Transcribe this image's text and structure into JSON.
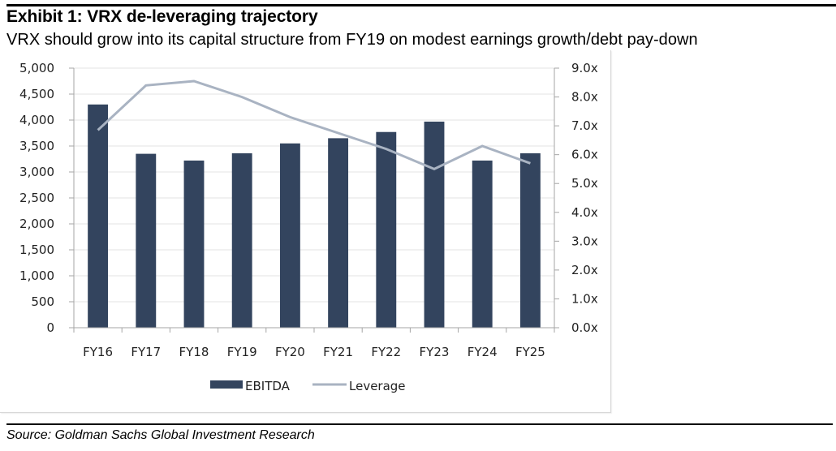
{
  "exhibit": {
    "title": "Exhibit 1: VRX de-leveraging trajectory",
    "subtitle": "VRX should grow into its capital structure from FY19 on modest earnings growth/debt pay-down",
    "source": "Source: Goldman Sachs Global Investment Research"
  },
  "chart_data": {
    "type": "bar",
    "title": "Exhibit 1: VRX de-leveraging trajectory",
    "subtitle": "VRX should grow into its capital structure from FY19 on modest earnings growth/debt pay-down",
    "xlabel": "",
    "ylabel": "",
    "y2label": "",
    "categories": [
      "FY16",
      "FY17",
      "FY18",
      "FY19",
      "FY20",
      "FY21",
      "FY22",
      "FY23",
      "FY24",
      "FY25"
    ],
    "series": [
      {
        "name": "EBITDA",
        "type": "bar",
        "axis": "left",
        "color": "#33445e",
        "values": [
          4300,
          3350,
          3220,
          3360,
          3550,
          3650,
          3770,
          3970,
          3220,
          3360
        ]
      },
      {
        "name": "Leverage",
        "type": "line",
        "axis": "right",
        "color": "#a9b3c2",
        "values": [
          6.85,
          8.4,
          8.55,
          8.0,
          7.3,
          6.75,
          6.2,
          5.5,
          6.3,
          5.7
        ]
      }
    ],
    "ylim": [
      0,
      5000
    ],
    "y_ticks": [
      0,
      500,
      1000,
      1500,
      2000,
      2500,
      3000,
      3500,
      4000,
      4500,
      5000
    ],
    "y_tick_labels": [
      "0",
      "500",
      "1,000",
      "1,500",
      "2,000",
      "2,500",
      "3,000",
      "3,500",
      "4,000",
      "4,500",
      "5,000"
    ],
    "y2lim": [
      0,
      9
    ],
    "y2_ticks": [
      0,
      1,
      2,
      3,
      4,
      5,
      6,
      7,
      8,
      9
    ],
    "y2_tick_labels": [
      "0.0x",
      "1.0x",
      "2.0x",
      "3.0x",
      "4.0x",
      "5.0x",
      "6.0x",
      "7.0x",
      "8.0x",
      "9.0x"
    ],
    "grid": true,
    "legend": {
      "position": "bottom",
      "entries": [
        "EBITDA",
        "Leverage"
      ]
    }
  }
}
